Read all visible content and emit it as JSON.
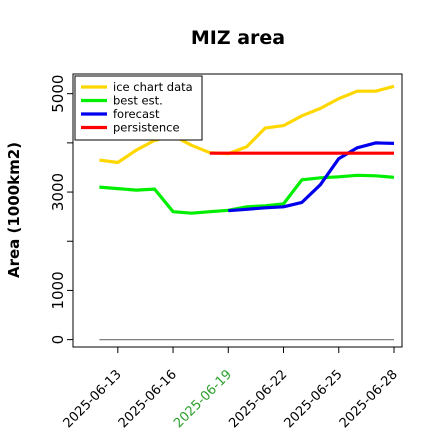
{
  "chart_data": {
    "type": "line",
    "title": "MIZ area",
    "xlabel": "",
    "ylabel": "Area (1000km2)",
    "ylim": [
      -150,
      5400
    ],
    "xlim": [
      "2025-06-11",
      "2025-06-28"
    ],
    "grid": false,
    "legend_position": "top-left",
    "x_ticks": [
      "2025-06-13",
      "2025-06-16",
      "2025-06-19",
      "2025-06-22",
      "2025-06-25",
      "2025-06-28"
    ],
    "highlighted_tick": "2025-06-19",
    "highlight_color": "#2ca02c",
    "y_ticks": [
      0,
      1000,
      3000,
      5000
    ],
    "y_minor_ticks": [
      2000,
      4000
    ],
    "baseline": {
      "y": 0,
      "x": [
        "2025-06-12",
        "2025-06-28"
      ],
      "color": "#7f7f7f"
    },
    "series": [
      {
        "name": "ice chart data",
        "color": "#ffd700",
        "x": [
          "2025-06-12",
          "2025-06-13",
          "2025-06-14",
          "2025-06-15",
          "2025-06-16",
          "2025-06-17",
          "2025-06-18",
          "2025-06-19",
          "2025-06-20",
          "2025-06-21",
          "2025-06-22",
          "2025-06-23",
          "2025-06-24",
          "2025-06-25",
          "2025-06-26",
          "2025-06-27",
          "2025-06-28"
        ],
        "y": [
          3650,
          3600,
          3850,
          4050,
          4150,
          3950,
          3800,
          3780,
          3920,
          4300,
          4350,
          4550,
          4700,
          4900,
          5050,
          5050,
          5150
        ]
      },
      {
        "name": "best est.",
        "color": "#00ee00",
        "x": [
          "2025-06-12",
          "2025-06-13",
          "2025-06-14",
          "2025-06-15",
          "2025-06-16",
          "2025-06-17",
          "2025-06-18",
          "2025-06-19",
          "2025-06-20",
          "2025-06-21",
          "2025-06-22",
          "2025-06-23",
          "2025-06-24",
          "2025-06-25",
          "2025-06-26",
          "2025-06-27",
          "2025-06-28"
        ],
        "y": [
          3100,
          3070,
          3040,
          3060,
          2600,
          2570,
          2600,
          2630,
          2700,
          2720,
          2760,
          3250,
          3290,
          3310,
          3340,
          3330,
          3300
        ]
      },
      {
        "name": "forecast",
        "color": "#0000ee",
        "x": [
          "2025-06-19",
          "2025-06-20",
          "2025-06-21",
          "2025-06-22",
          "2025-06-23",
          "2025-06-24",
          "2025-06-25",
          "2025-06-26",
          "2025-06-27",
          "2025-06-28"
        ],
        "y": [
          2620,
          2650,
          2680,
          2700,
          2790,
          3150,
          3680,
          3900,
          4000,
          3990
        ]
      },
      {
        "name": "persistence",
        "color": "#ff0000",
        "x": [
          "2025-06-18",
          "2025-06-28"
        ],
        "y": [
          3790,
          3790
        ]
      }
    ]
  }
}
